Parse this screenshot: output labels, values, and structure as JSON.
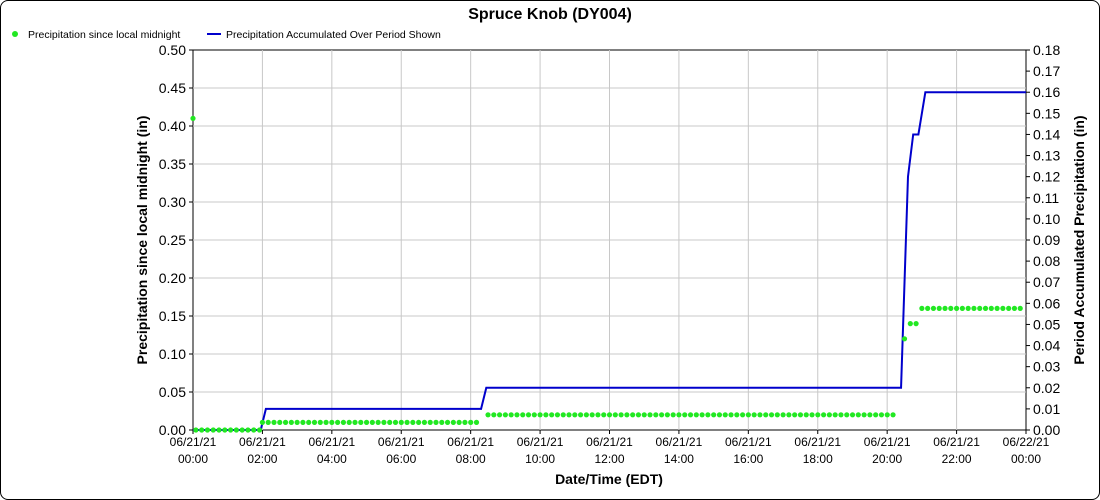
{
  "chart_data": {
    "type": "line",
    "title": "Spruce Knob (DY004)",
    "xlabel": "Date/Time (EDT)",
    "ylabel_left": "Precipitation since local midnight (in)",
    "ylabel_right": "Period Accumulated Precipitation (in)",
    "legend_placement": "top-left",
    "grid": true,
    "x_range_hours": [
      0,
      24
    ],
    "x_ticks": [
      {
        "hour": 0,
        "date": "06/21/21",
        "time": "00:00"
      },
      {
        "hour": 2,
        "date": "06/21/21",
        "time": "02:00"
      },
      {
        "hour": 4,
        "date": "06/21/21",
        "time": "04:00"
      },
      {
        "hour": 6,
        "date": "06/21/21",
        "time": "06:00"
      },
      {
        "hour": 8,
        "date": "06/21/21",
        "time": "08:00"
      },
      {
        "hour": 10,
        "date": "06/21/21",
        "time": "10:00"
      },
      {
        "hour": 12,
        "date": "06/21/21",
        "time": "12:00"
      },
      {
        "hour": 14,
        "date": "06/21/21",
        "time": "14:00"
      },
      {
        "hour": 16,
        "date": "06/21/21",
        "time": "16:00"
      },
      {
        "hour": 18,
        "date": "06/21/21",
        "time": "18:00"
      },
      {
        "hour": 20,
        "date": "06/21/21",
        "time": "20:00"
      },
      {
        "hour": 22,
        "date": "06/21/21",
        "time": "22:00"
      },
      {
        "hour": 24,
        "date": "06/22/21",
        "time": "00:00"
      }
    ],
    "y_left_range": [
      0,
      0.5
    ],
    "y_left_ticks": [
      "0.00",
      "0.05",
      "0.10",
      "0.15",
      "0.20",
      "0.25",
      "0.30",
      "0.35",
      "0.40",
      "0.45",
      "0.50"
    ],
    "y_right_range": [
      0,
      0.18
    ],
    "y_right_ticks": [
      "0.00",
      "0.01",
      "0.02",
      "0.03",
      "0.04",
      "0.05",
      "0.06",
      "0.07",
      "0.08",
      "0.09",
      "0.10",
      "0.11",
      "0.12",
      "0.13",
      "0.14",
      "0.15",
      "0.16",
      "0.17",
      "0.18"
    ],
    "series": [
      {
        "name": "Precipitation since local midnight",
        "axis": "left",
        "style": "points",
        "color": "#22e822",
        "points": [
          [
            0.0,
            0.41
          ],
          {
            "range": [
              0.083,
              1.917
            ],
            "step": 0.1667,
            "value": 0.0
          },
          {
            "range": [
              2.0,
              8.333
            ],
            "step": 0.1667,
            "value": 0.01
          },
          {
            "range": [
              8.5,
              20.333
            ],
            "step": 0.1667,
            "value": 0.02
          },
          [
            20.5,
            0.12
          ],
          [
            20.667,
            0.14
          ],
          [
            20.833,
            0.14
          ],
          {
            "range": [
              21.0,
              24.0
            ],
            "step": 0.1667,
            "value": 0.16
          }
        ]
      },
      {
        "name": "Precipitation Accumulated Over Period Shown",
        "axis": "right",
        "style": "line",
        "color": "#0000cc",
        "points": [
          [
            0.0,
            0.0
          ],
          [
            1.95,
            0.0
          ],
          [
            2.1,
            0.01
          ],
          [
            8.3,
            0.01
          ],
          [
            8.45,
            0.02
          ],
          [
            20.4,
            0.02
          ],
          [
            20.6,
            0.12
          ],
          [
            20.75,
            0.14
          ],
          [
            20.9,
            0.14
          ],
          [
            21.1,
            0.16
          ],
          [
            24.0,
            0.16
          ]
        ]
      }
    ]
  }
}
